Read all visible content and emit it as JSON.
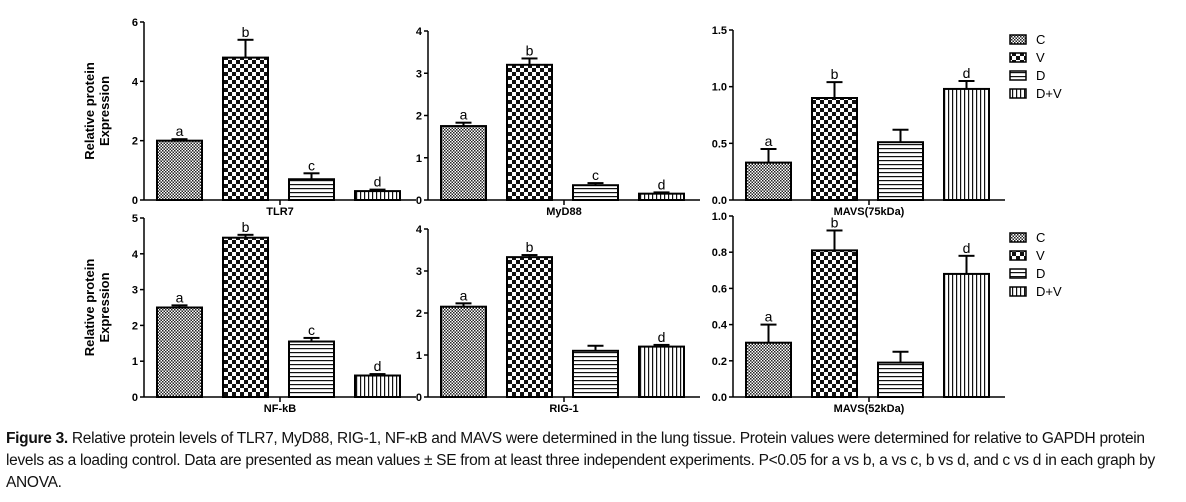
{
  "chart_data": [
    {
      "type": "bar",
      "title": "TLR7",
      "ylabel": "Relative protein Expression",
      "ylim": [
        0,
        6
      ],
      "yticks": [
        "0",
        "2",
        "4",
        "6"
      ],
      "categories": [
        "C",
        "V",
        "D",
        "D+V"
      ],
      "values": [
        2.0,
        4.8,
        0.7,
        0.3
      ],
      "errors": [
        0.05,
        0.6,
        0.2,
        0.05
      ],
      "letters": [
        "a",
        "b",
        "c",
        "d"
      ]
    },
    {
      "type": "bar",
      "title": "MyD88",
      "ylabel": "",
      "ylim": [
        0,
        4
      ],
      "yticks": [
        "0",
        "1",
        "2",
        "3",
        "4"
      ],
      "categories": [
        "C",
        "V",
        "D",
        "D+V"
      ],
      "values": [
        1.75,
        3.2,
        0.35,
        0.15
      ],
      "errors": [
        0.08,
        0.15,
        0.05,
        0.03
      ],
      "letters": [
        "a",
        "b",
        "c",
        "d"
      ]
    },
    {
      "type": "bar",
      "title": "MAVS(75kDa)",
      "ylabel": "",
      "ylim": [
        0,
        1.5
      ],
      "yticks": [
        "0.0",
        "0.5",
        "1.0",
        "1.5"
      ],
      "categories": [
        "C",
        "V",
        "D",
        "D+V"
      ],
      "values": [
        0.33,
        0.9,
        0.51,
        0.98
      ],
      "errors": [
        0.12,
        0.14,
        0.11,
        0.07
      ],
      "letters": [
        "a",
        "b",
        "",
        "d"
      ]
    },
    {
      "type": "bar",
      "title": "NF-kB",
      "ylabel": "Relative protein Expression",
      "ylim": [
        0,
        5
      ],
      "yticks": [
        "0",
        "1",
        "2",
        "3",
        "4",
        "5"
      ],
      "categories": [
        "C",
        "V",
        "D",
        "D+V"
      ],
      "values": [
        2.5,
        4.45,
        1.55,
        0.6
      ],
      "errors": [
        0.06,
        0.08,
        0.1,
        0.04
      ],
      "letters": [
        "a",
        "b",
        "c",
        "d"
      ]
    },
    {
      "type": "bar",
      "title": "RIG-1",
      "ylabel": "",
      "ylim": [
        0,
        4
      ],
      "yticks": [
        "0",
        "1",
        "2",
        "3",
        "4"
      ],
      "categories": [
        "C",
        "V",
        "D",
        "D+V"
      ],
      "values": [
        2.15,
        3.33,
        1.1,
        1.2
      ],
      "errors": [
        0.08,
        0.05,
        0.12,
        0.04
      ],
      "letters": [
        "a",
        "b",
        "",
        "d"
      ]
    },
    {
      "type": "bar",
      "title": "MAVS(52kDa)",
      "ylabel": "",
      "ylim": [
        0,
        1.0
      ],
      "yticks": [
        "0.0",
        "0.2",
        "0.4",
        "0.6",
        "0.8",
        "1.0"
      ],
      "categories": [
        "C",
        "V",
        "D",
        "D+V"
      ],
      "values": [
        0.3,
        0.81,
        0.19,
        0.68
      ],
      "errors": [
        0.1,
        0.11,
        0.06,
        0.1
      ],
      "letters": [
        "a",
        "b",
        "",
        "d"
      ]
    }
  ],
  "legend": [
    "C",
    "V",
    "D",
    "D+V"
  ],
  "caption": {
    "label": "Figure 3.",
    "text": " Relative protein levels of TLR7, MyD88, RIG-1, NF-κB and MAVS were determined in the lung tissue. Protein values were determined for relative to GAPDH protein levels as a loading control.  Data are presented as mean values ± SE from at least three independent experiments. P<0.05 for a vs b, a vs c, b vs d, and c vs d in each graph by ANOVA."
  }
}
